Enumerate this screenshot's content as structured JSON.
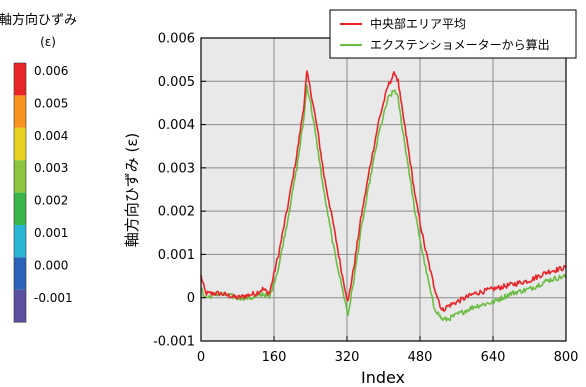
{
  "colorbar": {
    "title_line1": "軸方向ひずみ",
    "title_line2": "(ε)",
    "ticks": [
      "0.006",
      "0.005",
      "0.004",
      "0.003",
      "0.002",
      "0.001",
      "0.000",
      "-0.001"
    ],
    "colors": [
      "#e8262a",
      "#f7931e",
      "#e6d21e",
      "#8cc63f",
      "#39b54a",
      "#2bb6d6",
      "#2a63b9",
      "#5b4fa0"
    ]
  },
  "chart_data": {
    "type": "line",
    "xlabel": "Index",
    "ylabel": "軸方向ひずみ (ε)",
    "xlim": [
      0,
      800
    ],
    "ylim": [
      -0.001,
      0.006
    ],
    "xticks": [
      0,
      160,
      320,
      480,
      640,
      800
    ],
    "yticks": [
      -0.001,
      0,
      0.001,
      0.002,
      0.003,
      0.004,
      0.005,
      0.006
    ],
    "xtick_labels": [
      "0",
      "160",
      "320",
      "480",
      "640",
      "800"
    ],
    "ytick_labels": [
      "-0.001",
      "0",
      "0.001",
      "0.002",
      "0.003",
      "0.004",
      "0.005",
      "0.006"
    ],
    "grid": true,
    "legend_position": "top-right",
    "series": [
      {
        "name": "中央部エリア平均",
        "color": "#e8262a",
        "x": [
          0,
          10,
          40,
          80,
          120,
          135,
          150,
          170,
          190,
          210,
          225,
          232,
          240,
          255,
          270,
          290,
          310,
          322,
          335,
          350,
          370,
          390,
          410,
          425,
          432,
          440,
          455,
          470,
          490,
          510,
          528,
          540,
          560,
          580,
          600,
          640,
          680,
          720,
          760,
          800
        ],
        "y": [
          0.0005,
          0.0001,
          0.0001,
          0.0,
          0.0001,
          0.0002,
          0.0001,
          0.001,
          0.0021,
          0.0033,
          0.0044,
          0.0052,
          0.0048,
          0.0039,
          0.0028,
          0.0017,
          0.0005,
          -0.0001,
          0.0007,
          0.0018,
          0.003,
          0.0041,
          0.0049,
          0.0052,
          0.005,
          0.0044,
          0.0034,
          0.0023,
          0.0012,
          0.0003,
          -0.0003,
          -0.0002,
          -0.0001,
          0.0,
          0.0001,
          0.0002,
          0.0003,
          0.0004,
          0.0006,
          0.0007
        ]
      },
      {
        "name": "エクステンショメーターから算出",
        "color": "#6cbd45",
        "x": [
          0,
          10,
          40,
          80,
          120,
          135,
          150,
          170,
          190,
          210,
          225,
          232,
          240,
          255,
          270,
          290,
          310,
          322,
          335,
          350,
          370,
          390,
          410,
          425,
          432,
          440,
          455,
          470,
          490,
          510,
          528,
          540,
          560,
          580,
          600,
          640,
          680,
          720,
          760,
          800
        ],
        "y": [
          0.0002,
          0.0,
          0.0001,
          0.0,
          0.0,
          0.0001,
          0.0,
          0.0007,
          0.0018,
          0.003,
          0.0041,
          0.0049,
          0.0045,
          0.0035,
          0.0024,
          0.0012,
          0.0002,
          -0.0004,
          0.0004,
          0.0015,
          0.0027,
          0.0038,
          0.0046,
          0.0048,
          0.0046,
          0.004,
          0.003,
          0.0019,
          0.0008,
          -0.0002,
          -0.0005,
          -0.0005,
          -0.0004,
          -0.0003,
          -0.0002,
          -0.0001,
          0.0001,
          0.0002,
          0.0004,
          0.0005
        ]
      }
    ]
  }
}
